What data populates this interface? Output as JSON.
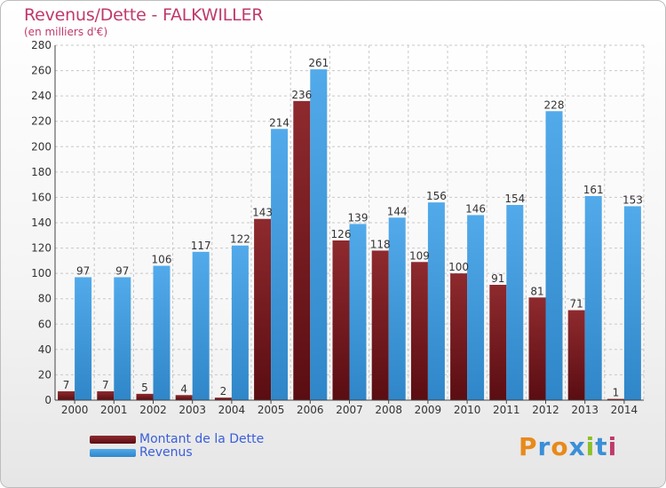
{
  "title": "Revenus/Dette - FALKWILLER",
  "subtitle": "(en milliers d'€)",
  "logo": {
    "text": "Proxiti",
    "letters": [
      "P",
      "r",
      "o",
      "x",
      "i",
      "t",
      "i"
    ],
    "colors": [
      "#e88a1a",
      "#3a8fd8",
      "#e88a1a",
      "#3a8fd8",
      "#8dbf2a",
      "#3a8fd8",
      "#c0396b"
    ]
  },
  "legend": [
    {
      "label": "Montant de la Dette",
      "color": "#7a1e22"
    },
    {
      "label": "Revenus",
      "color": "#3c97db"
    }
  ],
  "chart_data": {
    "type": "bar",
    "categories": [
      "2000",
      "2001",
      "2002",
      "2003",
      "2004",
      "2005",
      "2006",
      "2007",
      "2008",
      "2009",
      "2010",
      "2011",
      "2012",
      "2013",
      "2014"
    ],
    "series": [
      {
        "name": "Montant de la Dette",
        "color": "#7a1e22",
        "values": [
          7,
          7,
          5,
          4,
          2,
          143,
          236,
          126,
          118,
          109,
          100,
          91,
          81,
          71,
          1
        ]
      },
      {
        "name": "Revenus",
        "color": "#3c97db",
        "values": [
          97,
          97,
          106,
          117,
          122,
          214,
          261,
          139,
          144,
          156,
          146,
          154,
          228,
          161,
          153
        ]
      }
    ],
    "ylim": [
      0,
      280
    ],
    "yticks": [
      0,
      20,
      40,
      60,
      80,
      100,
      120,
      140,
      160,
      180,
      200,
      220,
      240,
      260,
      280
    ],
    "grid": true,
    "legend_position": "bottom-left"
  }
}
